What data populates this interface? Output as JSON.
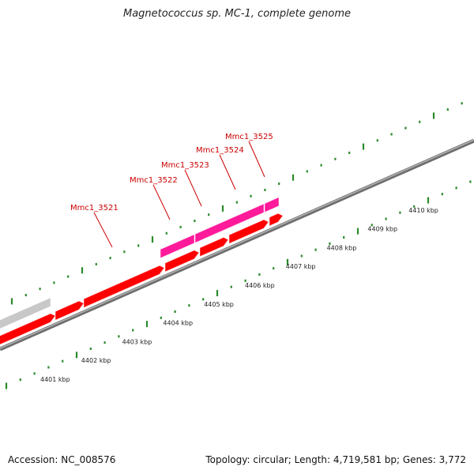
{
  "title": "Magnetococcus sp. MC-1, complete genome",
  "footer": {
    "accession": "Accession: NC_008576",
    "summary": "Topology: circular; Length: 4,719,581 bp; Genes: 3,772"
  },
  "colors": {
    "cds": "#ff0000",
    "highlight": "#ff1a9a",
    "other": "#c8c8c8",
    "backbone": "#888888",
    "ticks": "#2a8a2a",
    "label": "#cc0000"
  },
  "gene_labels": [
    {
      "id": "Mmc1_3521"
    },
    {
      "id": "Mmc1_3522"
    },
    {
      "id": "Mmc1_3523"
    },
    {
      "id": "Mmc1_3524"
    },
    {
      "id": "Mmc1_3525"
    }
  ],
  "scale_labels": [
    "4401 kbp",
    "4402 kbp",
    "4403 kbp",
    "4404 kbp",
    "4405 kbp",
    "4406 kbp",
    "4407 kbp",
    "4408 kbp",
    "4409 kbp",
    "4410 kbp"
  ]
}
